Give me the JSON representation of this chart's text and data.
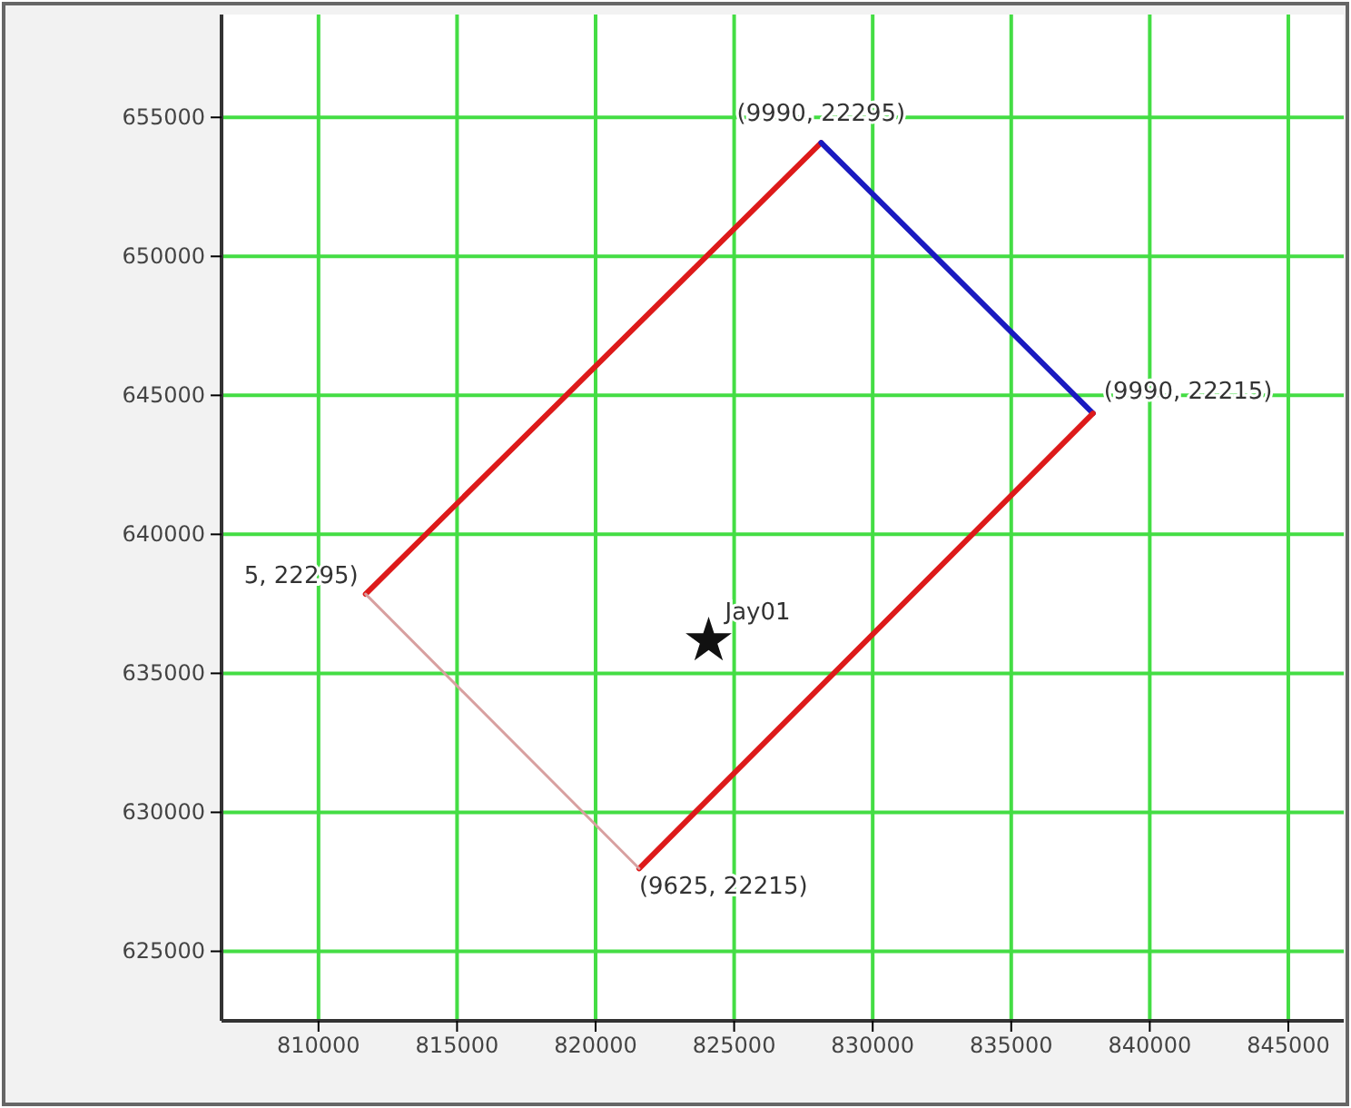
{
  "chart_data": {
    "type": "line",
    "xlim": [
      806500,
      847000
    ],
    "ylim": [
      622500,
      658700
    ],
    "xticks": [
      810000,
      815000,
      820000,
      825000,
      830000,
      835000,
      840000,
      845000
    ],
    "yticks": [
      625000,
      630000,
      635000,
      640000,
      645000,
      650000,
      655000
    ],
    "grid": true,
    "legend": false,
    "marker": "none",
    "line_style": "solid",
    "series": [
      {
        "color": "#dd1a1a",
        "x": [
          811700,
          828140
        ],
        "values": [
          637850,
          654090
        ]
      },
      {
        "color": "#1a1ac0",
        "x": [
          828140,
          837950
        ],
        "values": [
          654090,
          644350
        ]
      },
      {
        "color": "#dd1a1a",
        "x": [
          837950,
          821570
        ],
        "values": [
          644350,
          627980
        ]
      },
      {
        "color": "#d8a0a0",
        "x": [
          821570,
          811700
        ],
        "values": [
          627980,
          637850
        ]
      },
      {
        "type": "scatter",
        "name": "Jay01",
        "color": "#111111",
        "marker": "star",
        "x": [
          824080
        ],
        "values": [
          636170
        ]
      }
    ],
    "annotations": [
      {
        "text": "(9990, 22295)",
        "x": 828140,
        "y": 654090
      },
      {
        "text": "(9990, 22215)",
        "x": 837950,
        "y": 644350
      },
      {
        "text": "5, 22295)",
        "x": 811700,
        "y": 637850
      },
      {
        "text": "(9625, 22215)",
        "x": 821570,
        "y": 627980
      }
    ]
  }
}
